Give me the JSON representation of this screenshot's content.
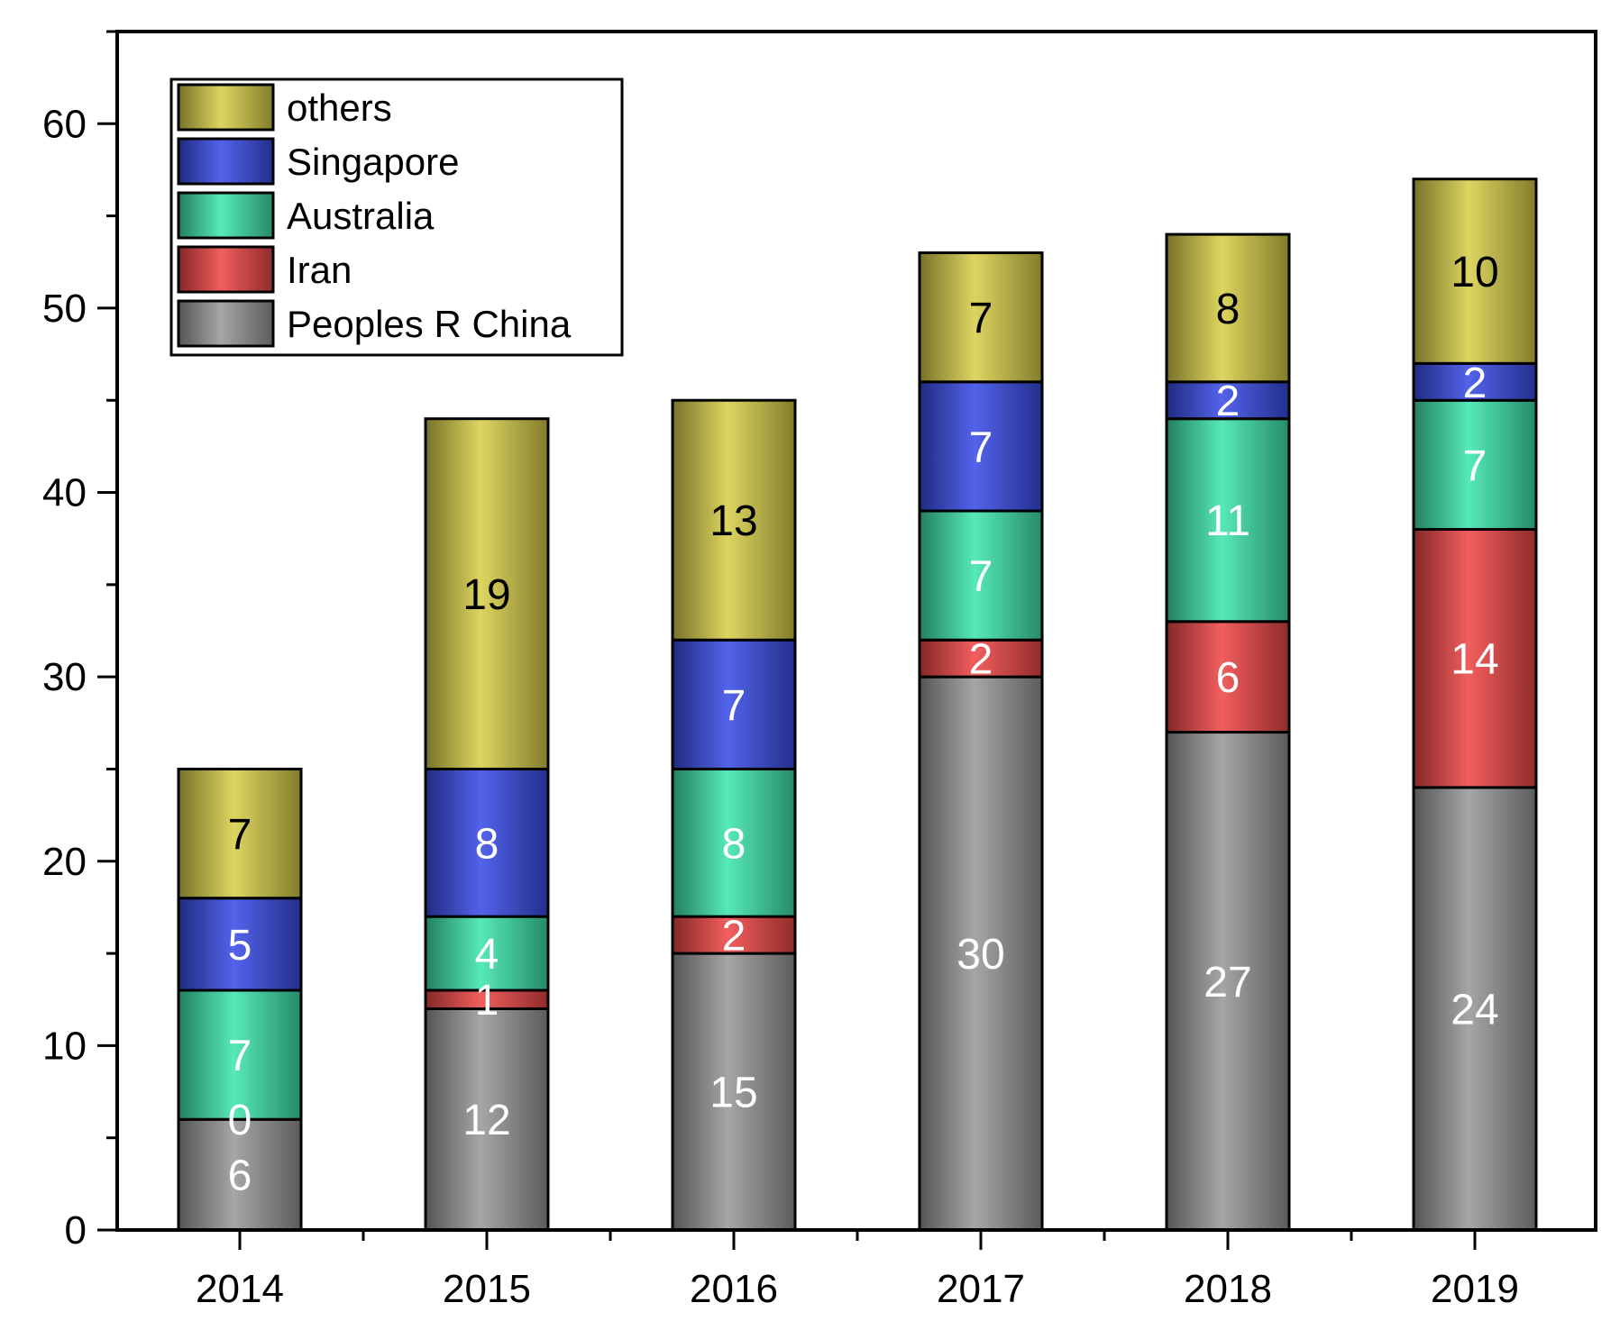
{
  "chart_data": {
    "type": "bar",
    "stacked": true,
    "title": "",
    "xlabel": "",
    "ylabel": "",
    "categories": [
      "2014",
      "2015",
      "2016",
      "2017",
      "2018",
      "2019"
    ],
    "ylim": [
      0,
      65
    ],
    "yticks": [
      "0",
      "10",
      "20",
      "30",
      "40",
      "50",
      "60"
    ],
    "grid": false,
    "legend_position": "top-left",
    "series": [
      {
        "name": "Peoples R China",
        "values": [
          6,
          12,
          15,
          30,
          27,
          24
        ],
        "color": "#9a9a9a",
        "label_color": "#ffffff"
      },
      {
        "name": "Iran",
        "values": [
          0,
          1,
          2,
          2,
          6,
          14
        ],
        "color": "#f04848",
        "label_color": "#ffffff"
      },
      {
        "name": "Australia",
        "values": [
          7,
          4,
          8,
          7,
          11,
          7
        ],
        "color": "#3fe6b0",
        "label_color": "#ffffff"
      },
      {
        "name": "Singapore",
        "values": [
          5,
          8,
          7,
          7,
          2,
          2
        ],
        "color": "#3b4ee8",
        "label_color": "#ffffff"
      },
      {
        "name": "others",
        "values": [
          7,
          19,
          13,
          7,
          8,
          10
        ],
        "color": "#d8cf4a",
        "label_color": "#000000"
      }
    ]
  }
}
